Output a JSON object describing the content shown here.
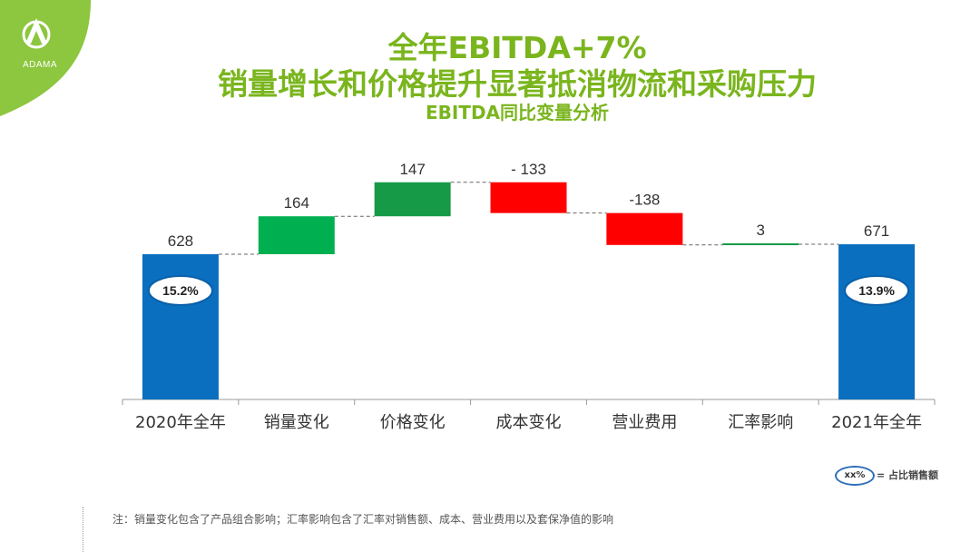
{
  "logo": {
    "text": "ADAMA",
    "green": "#8dc63f"
  },
  "titles": {
    "line1": "全年EBITDA+7%",
    "line2": "销量增长和价格提升显著抵消物流和采购压力",
    "line3": "EBITDA同比变量分析"
  },
  "chart_data": {
    "type": "waterfall",
    "categories": [
      "2020年全年",
      "销量变化",
      "价格变化",
      "成本变化",
      "营业费用",
      "汇率影响",
      "2021年全年"
    ],
    "values": [
      628,
      164,
      147,
      -133,
      -138,
      3,
      671
    ],
    "value_labels": [
      "628",
      "164",
      "147",
      "- 133",
      "-138",
      "3",
      "671"
    ],
    "kinds": [
      "total",
      "delta",
      "delta",
      "delta",
      "delta",
      "delta",
      "total"
    ],
    "colors": [
      "#0a6fbf",
      "#00b050",
      "#169a47",
      "#ff0000",
      "#ff0000",
      "#169a47",
      "#0a6fbf"
    ],
    "badges": [
      {
        "index": 0,
        "text": "15.2%"
      },
      {
        "index": 6,
        "text": "13.9%"
      }
    ]
  },
  "legend": {
    "oval_text": "xx%",
    "text": "= 占比销售额"
  },
  "note": "注：销量变化包含了产品组合影响；汇率影响包含了汇率对销售额、成本、营业费用以及套保净值的影响"
}
